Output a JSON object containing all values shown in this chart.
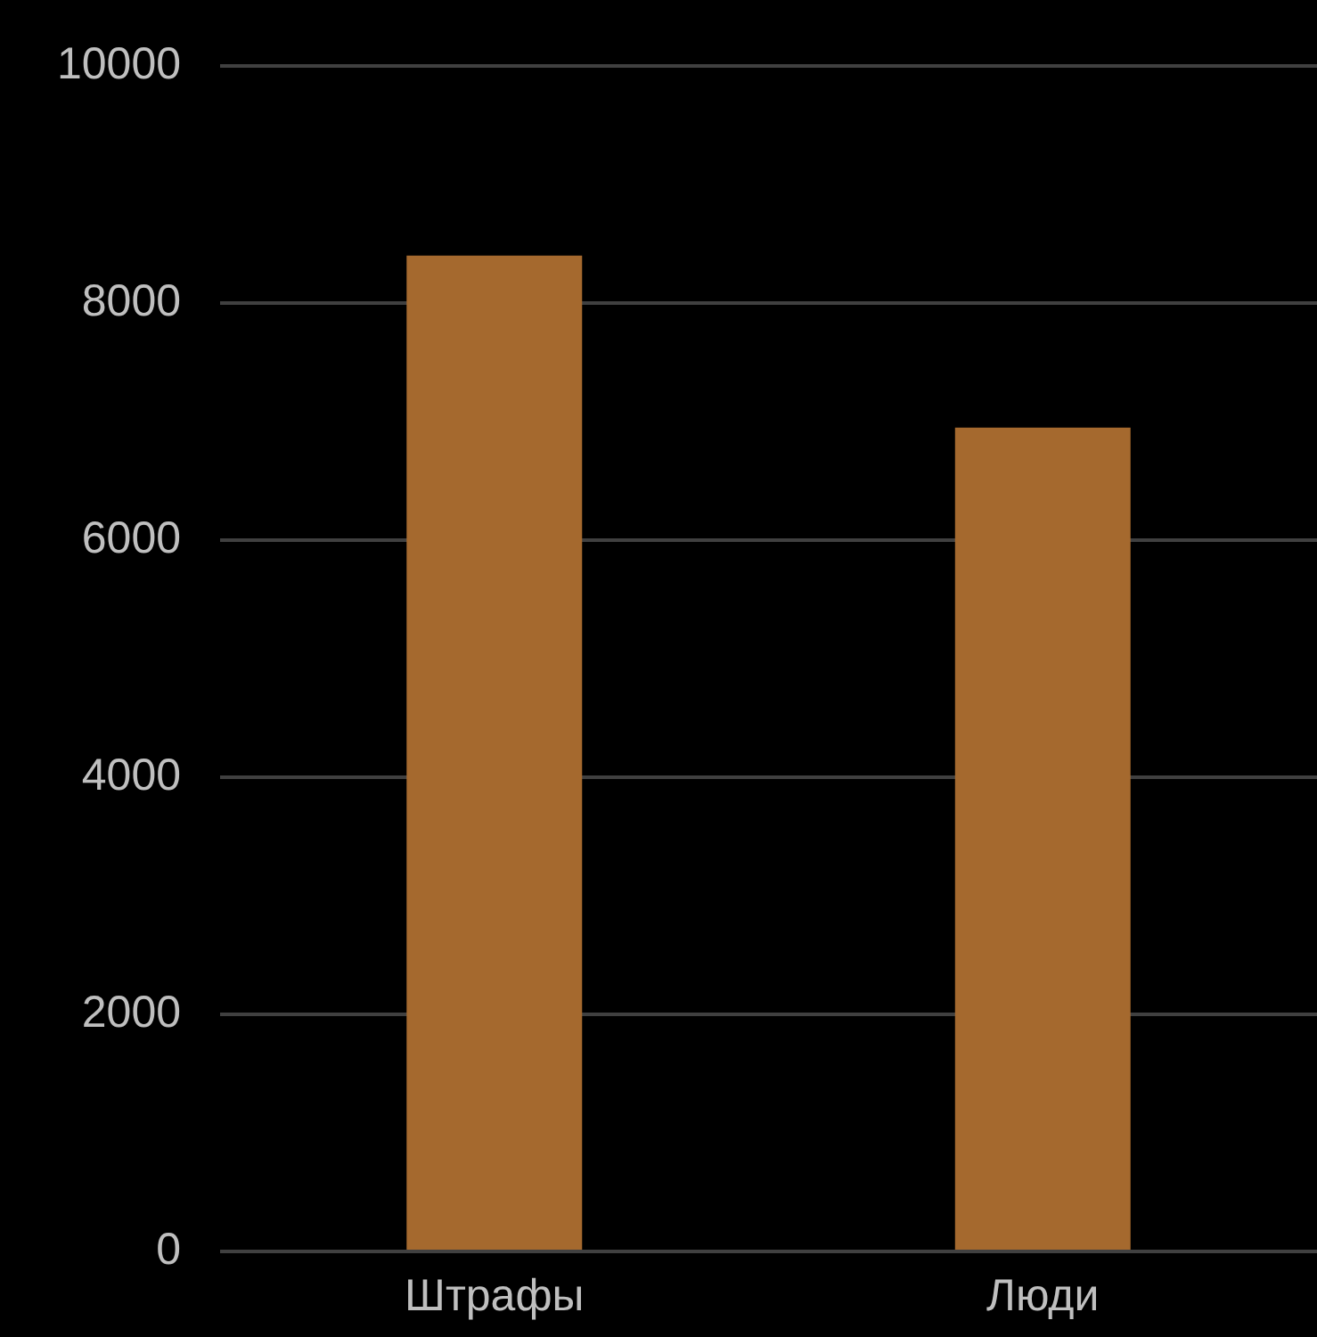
{
  "chart_data": {
    "type": "bar",
    "categories": [
      "Штрафы",
      "Люди"
    ],
    "values": [
      8400,
      6950
    ],
    "color": "#a5692e",
    "ylim": [
      0,
      10000
    ],
    "yticks": [
      0,
      2000,
      4000,
      6000,
      8000,
      10000
    ],
    "grid": "y"
  }
}
